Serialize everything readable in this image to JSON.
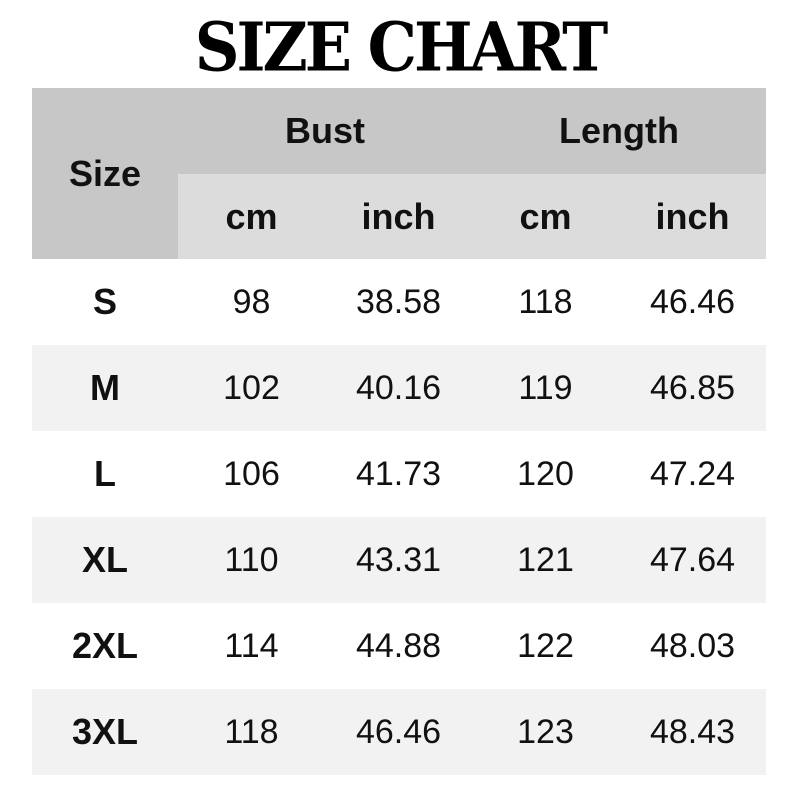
{
  "title": "SIZE CHART",
  "chart_data": {
    "type": "table",
    "title": "SIZE CHART",
    "header": {
      "size": "Size",
      "groups": [
        "Bust",
        "Length"
      ],
      "units": [
        "cm",
        "inch",
        "cm",
        "inch"
      ]
    },
    "rows": [
      {
        "size": "S",
        "values": [
          "98",
          "38.58",
          "118",
          "46.46"
        ]
      },
      {
        "size": "M",
        "values": [
          "102",
          "40.16",
          "119",
          "46.85"
        ]
      },
      {
        "size": "L",
        "values": [
          "106",
          "41.73",
          "120",
          "47.24"
        ]
      },
      {
        "size": "XL",
        "values": [
          "110",
          "43.31",
          "121",
          "47.64"
        ]
      },
      {
        "size": "2XL",
        "values": [
          "114",
          "44.88",
          "122",
          "48.03"
        ]
      },
      {
        "size": "3XL",
        "values": [
          "118",
          "46.46",
          "123",
          "48.43"
        ]
      }
    ]
  },
  "colors": {
    "header": "#c7c7c7",
    "subheader": "#dcdcdc",
    "alt_row": "#f2f2f2"
  }
}
